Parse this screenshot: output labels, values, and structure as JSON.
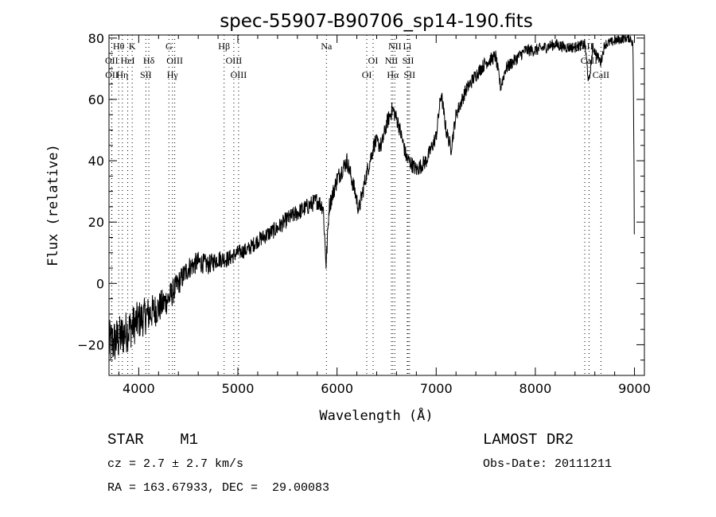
{
  "chart_data": {
    "type": "line",
    "title": "spec-55907-B90706_sp14-190.fits",
    "xlabel": "Wavelength (Å)",
    "ylabel": "Flux (relative)",
    "xlim": [
      3700,
      9100
    ],
    "ylim": [
      -30,
      81
    ],
    "xticks": [
      4000,
      5000,
      6000,
      7000,
      8000,
      9000
    ],
    "yticks": [
      -20,
      0,
      20,
      40,
      60,
      80
    ],
    "grid": false,
    "series": [
      {
        "name": "spectrum",
        "anchors": [
          [
            3700,
            -20
          ],
          [
            3800,
            -18
          ],
          [
            3900,
            -15
          ],
          [
            4000,
            -12
          ],
          [
            4100,
            -10
          ],
          [
            4200,
            -8
          ],
          [
            4300,
            -5
          ],
          [
            4400,
            0
          ],
          [
            4500,
            5
          ],
          [
            4600,
            7
          ],
          [
            4700,
            6
          ],
          [
            4800,
            8
          ],
          [
            4900,
            8
          ],
          [
            5000,
            10
          ],
          [
            5100,
            11
          ],
          [
            5200,
            14
          ],
          [
            5300,
            16
          ],
          [
            5400,
            18
          ],
          [
            5500,
            21
          ],
          [
            5600,
            23
          ],
          [
            5700,
            25
          ],
          [
            5800,
            27
          ],
          [
            5860,
            25
          ],
          [
            5890,
            6
          ],
          [
            5920,
            25
          ],
          [
            6000,
            34
          ],
          [
            6100,
            40
          ],
          [
            6180,
            30
          ],
          [
            6220,
            24
          ],
          [
            6300,
            36
          ],
          [
            6380,
            46
          ],
          [
            6450,
            45
          ],
          [
            6500,
            52
          ],
          [
            6560,
            57
          ],
          [
            6620,
            52
          ],
          [
            6700,
            41
          ],
          [
            6800,
            37
          ],
          [
            6900,
            40
          ],
          [
            7000,
            48
          ],
          [
            7050,
            62
          ],
          [
            7100,
            50
          ],
          [
            7150,
            44
          ],
          [
            7200,
            55
          ],
          [
            7300,
            63
          ],
          [
            7400,
            68
          ],
          [
            7500,
            72
          ],
          [
            7600,
            74
          ],
          [
            7650,
            64
          ],
          [
            7700,
            70
          ],
          [
            7800,
            73
          ],
          [
            7900,
            76
          ],
          [
            8000,
            76
          ],
          [
            8100,
            77
          ],
          [
            8200,
            78
          ],
          [
            8300,
            77
          ],
          [
            8400,
            77
          ],
          [
            8500,
            78
          ],
          [
            8540,
            65
          ],
          [
            8580,
            77
          ],
          [
            8660,
            72
          ],
          [
            8700,
            78
          ],
          [
            8800,
            79
          ],
          [
            8900,
            80
          ],
          [
            8960,
            80
          ],
          [
            8985,
            78
          ],
          [
            8995,
            40
          ],
          [
            9000,
            0
          ]
        ],
        "noise": [
          [
            3700,
            8
          ],
          [
            4100,
            6
          ],
          [
            4400,
            4
          ],
          [
            5000,
            2.5
          ],
          [
            6000,
            3
          ],
          [
            7000,
            2.5
          ],
          [
            8000,
            2
          ],
          [
            9000,
            1.5
          ]
        ]
      }
    ],
    "line_markers": [
      {
        "label": "Hθ",
        "wave": 3798,
        "row": 0
      },
      {
        "label": "K",
        "wave": 3934,
        "row": 0
      },
      {
        "label": "G",
        "wave": 4304,
        "row": 0
      },
      {
        "label": "Hβ",
        "wave": 4861,
        "row": 0
      },
      {
        "label": "Na",
        "wave": 5893,
        "row": 0
      },
      {
        "label": "NII",
        "wave": 6583,
        "row": 0
      },
      {
        "label": "Li",
        "wave": 6708,
        "row": 0
      },
      {
        "label": "CaII",
        "wave": 8498,
        "row": 0
      },
      {
        "label": "OII",
        "wave": 3727,
        "row": 1
      },
      {
        "label": "HeI",
        "wave": 3889,
        "row": 1
      },
      {
        "label": "Hδ",
        "wave": 4102,
        "row": 1
      },
      {
        "label": "OIII",
        "wave": 4363,
        "row": 1
      },
      {
        "label": "OIII",
        "wave": 4959,
        "row": 1
      },
      {
        "label": "OI",
        "wave": 6364,
        "row": 1
      },
      {
        "label": "NII",
        "wave": 6548,
        "row": 1
      },
      {
        "label": "SII",
        "wave": 6717,
        "row": 1
      },
      {
        "label": "CaII",
        "wave": 8542,
        "row": 1
      },
      {
        "label": "OII",
        "wave": 3729,
        "row": 2
      },
      {
        "label": "Hη",
        "wave": 3835,
        "row": 2
      },
      {
        "label": "SII",
        "wave": 4072,
        "row": 2
      },
      {
        "label": "Hγ",
        "wave": 4340,
        "row": 2
      },
      {
        "label": "OIII",
        "wave": 5007,
        "row": 2
      },
      {
        "label": "OI",
        "wave": 6300,
        "row": 2
      },
      {
        "label": "Hα",
        "wave": 6563,
        "row": 2
      },
      {
        "label": "SII",
        "wave": 6731,
        "row": 2
      },
      {
        "label": "CaII",
        "wave": 8662,
        "row": 2
      }
    ]
  },
  "info": {
    "class": "STAR    M1",
    "cz": "cz = 2.7 ± 2.7 km/s",
    "coords": "RA = 163.67933, DEC =  29.00083",
    "survey": "LAMOST DR2",
    "obs_date": "Obs-Date: 20111211"
  }
}
